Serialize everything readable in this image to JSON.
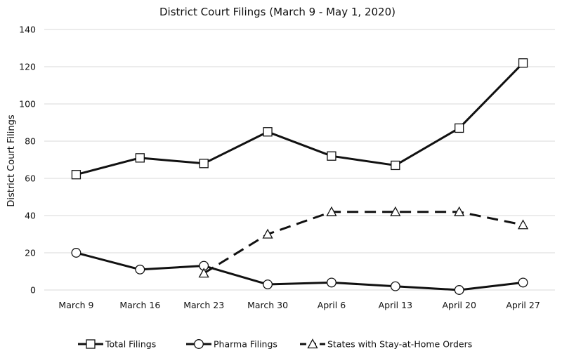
{
  "chart_data": {
    "type": "line",
    "title": "District Court Filings (March 9 - May 1, 2020)",
    "xlabel": "",
    "ylabel": "District Court Filings",
    "ylim": [
      0,
      140
    ],
    "yticks": [
      0,
      20,
      40,
      60,
      80,
      100,
      120,
      140
    ],
    "grid": true,
    "legend_position": "bottom",
    "categories": [
      "March 9",
      "March 16",
      "March 23",
      "March 30",
      "April 6",
      "April 13",
      "April 20",
      "April 27"
    ],
    "series": [
      {
        "name": "Total Filings",
        "marker": "square",
        "dash": "solid",
        "values": [
          62,
          71,
          68,
          85,
          72,
          67,
          87,
          122
        ]
      },
      {
        "name": "Pharma Filings",
        "marker": "circle",
        "dash": "solid",
        "values": [
          20,
          11,
          13,
          3,
          4,
          2,
          0,
          4
        ]
      },
      {
        "name": "States with Stay-at-Home Orders",
        "marker": "triangle",
        "dash": "dashed",
        "values": [
          null,
          null,
          9,
          30,
          42,
          42,
          42,
          35
        ]
      }
    ]
  }
}
